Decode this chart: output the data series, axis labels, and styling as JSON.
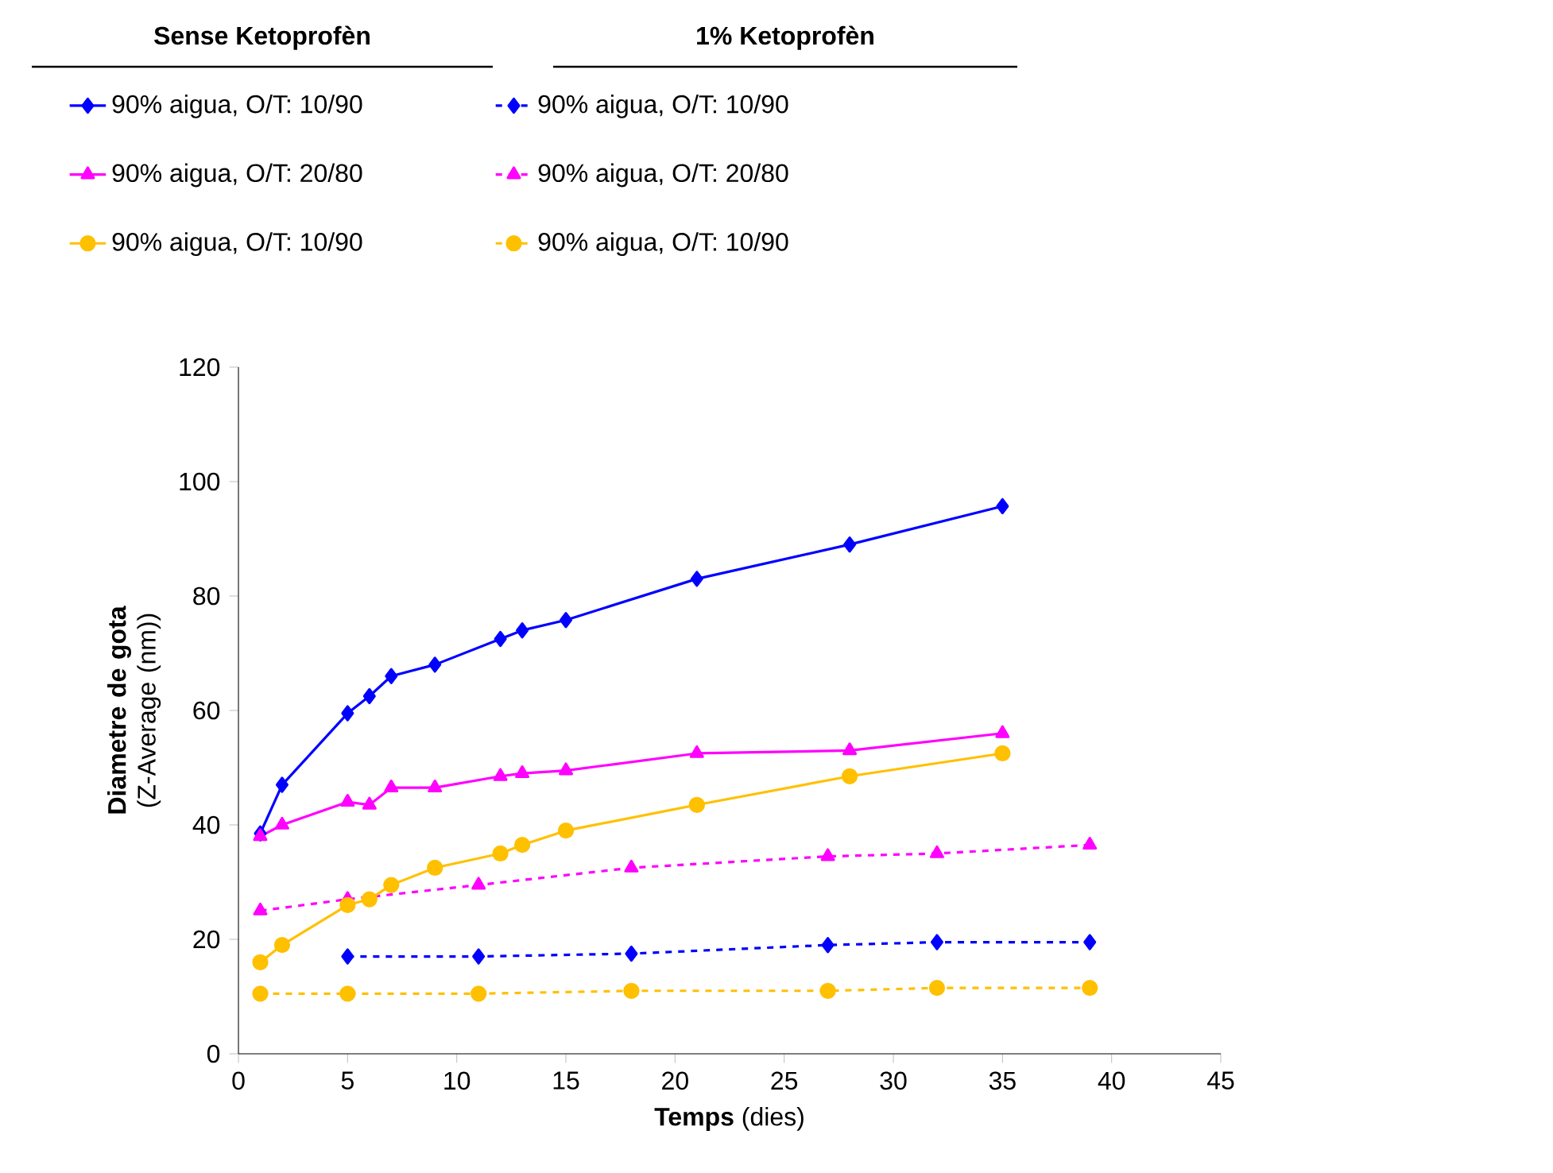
{
  "chart_data": {
    "type": "line",
    "xlabel": "**Temps** (dies)",
    "ylabel": "**Diametre de gota** (Z-Average (nm))",
    "annotations": [
      "Sense Ketoprofèn",
      "1%  Ketoprofèn"
    ],
    "xlim": [
      0,
      45
    ],
    "xticks": [
      0,
      5,
      10,
      15,
      20,
      25,
      30,
      35,
      40,
      45
    ],
    "ylim": [
      0,
      120
    ],
    "yticks": [
      0,
      20,
      40,
      60,
      80,
      100,
      120
    ],
    "legend": "top left",
    "series": [
      {
        "name": "90% aigua, O/T: 10/90",
        "color": "#0000ff",
        "marker": "diamond",
        "line_style": "solid",
        "x": [
          1,
          2,
          5,
          6,
          7,
          9,
          12,
          13,
          15,
          21,
          28,
          35
        ],
        "values": [
          38.5,
          47,
          59.5,
          62.5,
          66,
          68,
          72.5,
          74,
          75.8,
          83,
          89,
          95.7
        ]
      },
      {
        "name": "90% aigua, O/T: 10/90",
        "color": "#0000ff",
        "marker": "diamond",
        "line_style": "dashed",
        "x": [
          5,
          11,
          18,
          27,
          32,
          39
        ],
        "values": [
          17,
          17,
          17.5,
          19,
          19.5,
          19.5
        ]
      },
      {
        "name": "90% aigua, O/T: 20/80",
        "color": "#ff00ff",
        "marker": "triangle",
        "line_style": "solid",
        "x": [
          1,
          2,
          5,
          6,
          7,
          9,
          12,
          13,
          15,
          21,
          28,
          35
        ],
        "values": [
          38,
          40,
          44,
          43.5,
          46.5,
          46.5,
          48.5,
          49,
          49.5,
          52.5,
          53,
          56
        ]
      },
      {
        "name": "90% aigua, O/T: 20/80",
        "color": "#ff00ff",
        "marker": "triangle",
        "line_style": "dashed",
        "x": [
          1,
          5,
          11,
          18,
          27,
          32,
          39
        ],
        "values": [
          25,
          27,
          29.5,
          32.5,
          34.5,
          35,
          36.5
        ]
      },
      {
        "name": "90% aigua, O/T: 10/90",
        "color": "#ffc000",
        "marker": "circle",
        "line_style": "solid",
        "x": [
          1,
          2,
          5,
          6,
          7,
          9,
          12,
          13,
          15,
          21,
          28,
          35
        ],
        "values": [
          16,
          19,
          26,
          27,
          29.5,
          32.5,
          35,
          36.5,
          39,
          43.5,
          48.5,
          52.5
        ]
      },
      {
        "name": "90% aigua, O/T: 10/90",
        "color": "#ffc000",
        "marker": "circle",
        "line_style": "dashed",
        "x": [
          1,
          5,
          11,
          18,
          27,
          32,
          39
        ],
        "values": [
          10.5,
          10.5,
          10.5,
          11,
          11,
          11.5,
          11.5
        ]
      }
    ]
  }
}
